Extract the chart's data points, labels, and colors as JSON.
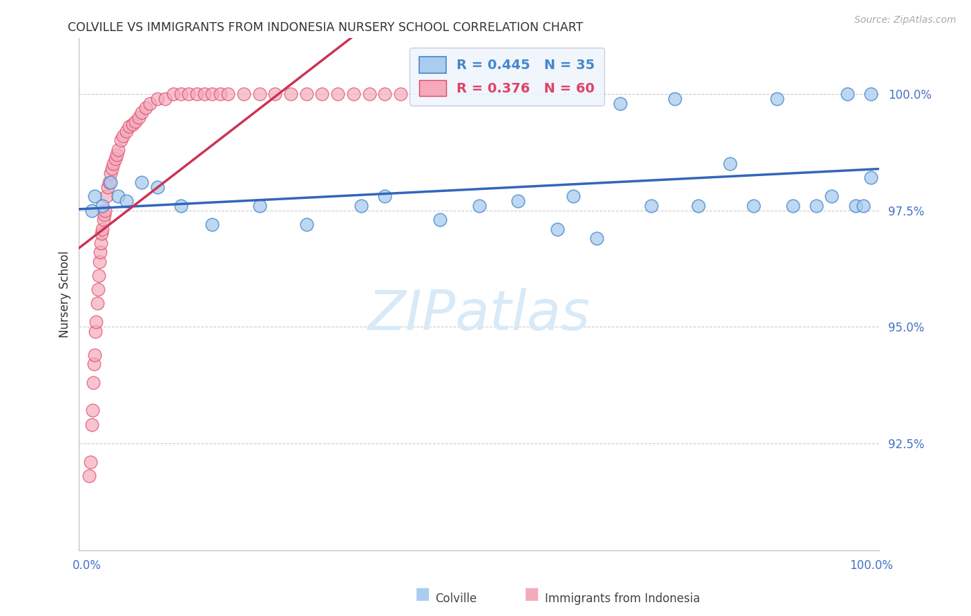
{
  "title": "COLVILLE VS IMMIGRANTS FROM INDONESIA NURSERY SCHOOL CORRELATION CHART",
  "source_text": "Source: ZipAtlas.com",
  "ylabel": "Nursery School",
  "xlim": [
    -0.01,
    1.01
  ],
  "ylim": [
    0.902,
    1.012
  ],
  "yticks": [
    0.925,
    0.95,
    0.975,
    1.0
  ],
  "ytick_labels": [
    "92.5%",
    "95.0%",
    "97.5%",
    "100.0%"
  ],
  "xtick_positions": [
    0.0,
    1.0
  ],
  "xtick_labels": [
    "0.0%",
    "100.0%"
  ],
  "colville_R": 0.445,
  "colville_N": 35,
  "indonesia_R": 0.376,
  "indonesia_N": 60,
  "colville_face_color": "#AACCEE",
  "indonesia_face_color": "#F4AABB",
  "colville_edge_color": "#4488CC",
  "indonesia_edge_color": "#DD4466",
  "colville_line_color": "#3366BB",
  "indonesia_line_color": "#CC3355",
  "watermark_text": "ZIPatlas",
  "watermark_color": "#D8EAF8",
  "background_color": "#FFFFFF",
  "colville_x": [
    0.01,
    0.02,
    0.03,
    0.04,
    0.05,
    0.07,
    0.09,
    0.12,
    0.16,
    0.22,
    0.28,
    0.35,
    0.38,
    0.45,
    0.5,
    0.55,
    0.6,
    0.62,
    0.65,
    0.68,
    0.72,
    0.75,
    0.78,
    0.82,
    0.85,
    0.88,
    0.9,
    0.93,
    0.95,
    0.97,
    0.98,
    0.99,
    1.0,
    1.0,
    0.006
  ],
  "colville_y": [
    0.978,
    0.976,
    0.981,
    0.978,
    0.977,
    0.981,
    0.98,
    0.976,
    0.972,
    0.976,
    0.972,
    0.976,
    0.978,
    0.973,
    0.976,
    0.977,
    0.971,
    0.978,
    0.969,
    0.998,
    0.976,
    0.999,
    0.976,
    0.985,
    0.976,
    0.999,
    0.976,
    0.976,
    0.978,
    1.0,
    0.976,
    0.976,
    1.0,
    0.982,
    0.975
  ],
  "indonesia_x": [
    0.003,
    0.005,
    0.006,
    0.007,
    0.008,
    0.009,
    0.01,
    0.011,
    0.012,
    0.013,
    0.014,
    0.015,
    0.016,
    0.017,
    0.018,
    0.019,
    0.02,
    0.021,
    0.022,
    0.023,
    0.025,
    0.027,
    0.028,
    0.03,
    0.032,
    0.034,
    0.036,
    0.038,
    0.04,
    0.043,
    0.046,
    0.05,
    0.054,
    0.058,
    0.062,
    0.066,
    0.07,
    0.075,
    0.08,
    0.09,
    0.1,
    0.11,
    0.12,
    0.13,
    0.14,
    0.15,
    0.16,
    0.17,
    0.18,
    0.2,
    0.22,
    0.24,
    0.26,
    0.28,
    0.3,
    0.32,
    0.34,
    0.36,
    0.38,
    0.4
  ],
  "indonesia_y": [
    0.918,
    0.921,
    0.929,
    0.932,
    0.938,
    0.942,
    0.944,
    0.949,
    0.951,
    0.955,
    0.958,
    0.961,
    0.964,
    0.966,
    0.968,
    0.97,
    0.971,
    0.973,
    0.974,
    0.975,
    0.978,
    0.98,
    0.981,
    0.983,
    0.984,
    0.985,
    0.986,
    0.987,
    0.988,
    0.99,
    0.991,
    0.992,
    0.993,
    0.9935,
    0.994,
    0.995,
    0.996,
    0.997,
    0.998,
    0.999,
    0.999,
    1.0,
    1.0,
    1.0,
    1.0,
    1.0,
    1.0,
    1.0,
    1.0,
    1.0,
    1.0,
    1.0,
    1.0,
    1.0,
    1.0,
    1.0,
    1.0,
    1.0,
    1.0,
    1.0
  ]
}
